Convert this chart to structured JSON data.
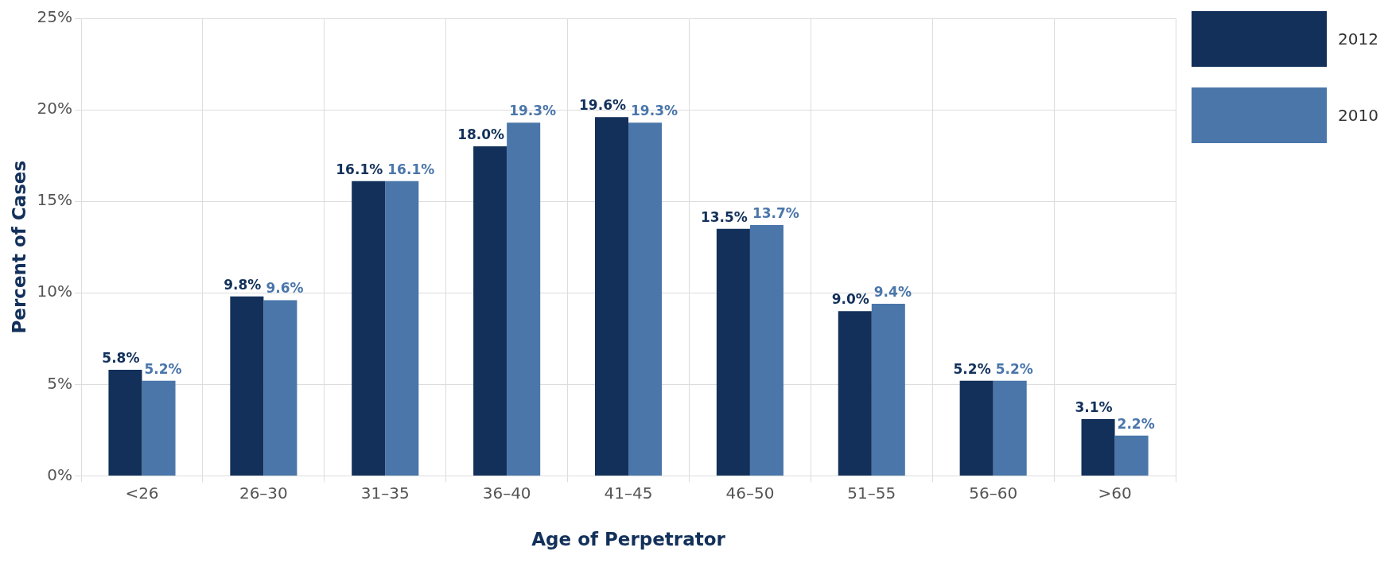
{
  "chart_data": {
    "type": "bar",
    "xlabel": "Age of Perpetrator",
    "ylabel": "Percent of Cases",
    "categories": [
      "<26",
      "26–30",
      "31–35",
      "36–40",
      "41–45",
      "46–50",
      "51–55",
      "56–60",
      ">60"
    ],
    "series": [
      {
        "name": "2012",
        "color": "#12305a",
        "values": [
          5.8,
          9.8,
          16.1,
          18.0,
          19.6,
          13.5,
          9.0,
          5.2,
          3.1
        ],
        "value_labels": [
          "5.8%",
          "9.8%",
          "16.1%",
          "18.0%",
          "19.6%",
          "13.5%",
          "9.0%",
          "5.2%",
          "3.1%"
        ]
      },
      {
        "name": "2010",
        "color": "#4a76aa",
        "values": [
          5.2,
          9.6,
          16.1,
          19.3,
          19.3,
          13.7,
          9.4,
          5.2,
          2.2
        ],
        "value_labels": [
          "5.2%",
          "9.6%",
          "16.1%",
          "19.3%",
          "19.3%",
          "13.7%",
          "9.4%",
          "5.2%",
          "2.2%"
        ]
      }
    ],
    "ylim": [
      0,
      25
    ],
    "yticks": [
      {
        "value": 0,
        "label": "0%"
      },
      {
        "value": 5,
        "label": "5%"
      },
      {
        "value": 10,
        "label": "10%"
      },
      {
        "value": 15,
        "label": "15%"
      },
      {
        "value": 20,
        "label": "20%"
      },
      {
        "value": 25,
        "label": "25%"
      }
    ],
    "grid": true,
    "legend": "top right"
  }
}
